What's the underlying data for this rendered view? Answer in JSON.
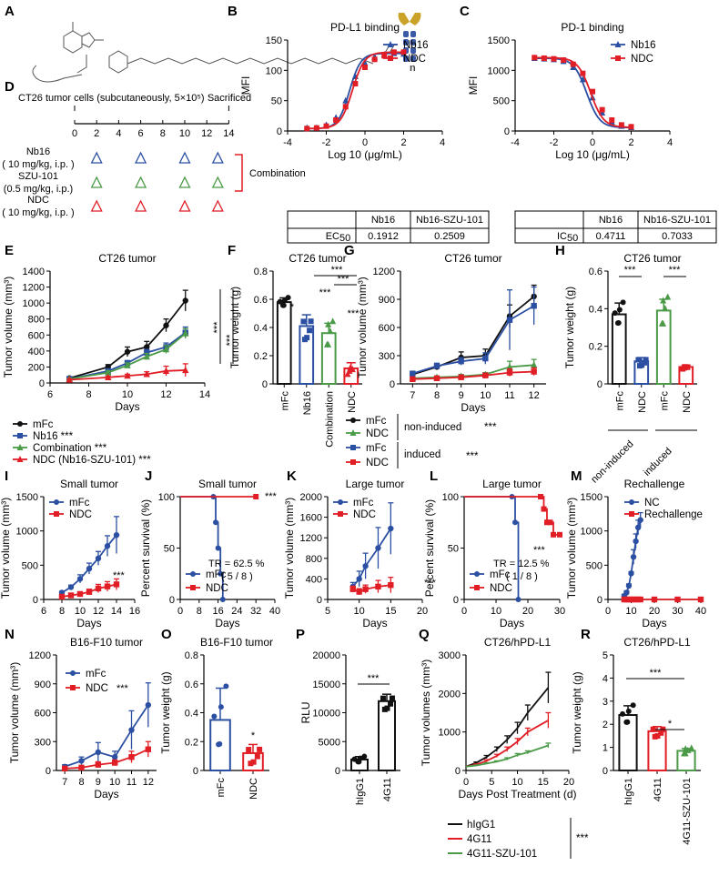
{
  "colors": {
    "black": "#111111",
    "blue": "#2b4fa2",
    "red": "#e11e26",
    "green": "#4a9a47",
    "orange": "#c9a227"
  },
  "panels": [
    "A",
    "B",
    "C",
    "D",
    "E",
    "F",
    "G",
    "H",
    "I",
    "J",
    "K",
    "L",
    "M",
    "N",
    "O",
    "P",
    "Q",
    "R"
  ],
  "stars": "***",
  "star1": "*",
  "a": {
    "n_label": "n"
  },
  "b": {
    "table": {
      "cols": [
        "Nb16",
        "Nb16-SZU-101"
      ],
      "row_label": "EC",
      "row_sub": "50",
      "values": [
        "0.1912",
        "0.2509"
      ]
    }
  },
  "c": {
    "table": {
      "cols": [
        "Nb16",
        "Nb16-SZU-101"
      ],
      "row_label": "IC",
      "row_sub": "50",
      "values": [
        "0.4711",
        "0.7033"
      ]
    }
  },
  "d": {
    "header": "CT26 tumor cells (subcutaneously, 5×10⁵)",
    "sacrificed": "Sacrificed",
    "ticks": [
      "0",
      "2",
      "4",
      "6",
      "8",
      "10",
      "12",
      "14"
    ],
    "groups": [
      {
        "name": "Nb16",
        "dose": "( 10 mg/kg, i.p. )"
      },
      {
        "name": "SZU-101",
        "dose": "(0.5 mg/kg, i.p.)"
      },
      {
        "name": "NDC",
        "dose": "( 10 mg/kg, i.p. )"
      }
    ],
    "dose_days": [
      2,
      6,
      10,
      13
    ],
    "combination": "Combination"
  },
  "e": {
    "legend": [
      "mFc",
      "Nb16 ***",
      "Combination ***",
      "NDC (Nb16-SZU-101) ***"
    ]
  },
  "g": {
    "legend_groups": [
      {
        "items": [
          "mFc",
          "NDC"
        ],
        "label": "non-induced",
        "stars": "***"
      },
      {
        "items": [
          "mFc",
          "NDC"
        ],
        "label": "induced",
        "stars": "***"
      }
    ]
  },
  "h": {
    "group_labels": [
      "non-induced",
      "induced"
    ]
  },
  "j": {
    "tr": "TR = 62.5 %",
    "tr_n": "( 5 / 8 )"
  },
  "l": {
    "tr": "TR = 12.5 %",
    "tr_n": "( 1 / 8 )"
  },
  "q": {
    "legend": [
      "hIgG1",
      "4G11",
      "4G11-SZU-101"
    ]
  },
  "chart_data": [
    {
      "id": "B",
      "type": "scatter",
      "title": "PD-L1 binding",
      "xlabel": "Log 10 (μg/mL)",
      "ylabel": "MFI",
      "xlim": [
        -4,
        4
      ],
      "ylim": [
        0,
        150
      ],
      "xticks": [
        -4,
        -2,
        0,
        2,
        4
      ],
      "yticks": [
        0,
        50,
        100,
        150
      ],
      "series": [
        {
          "name": "Nb16",
          "x": [
            -3,
            -2.5,
            -2,
            -1.5,
            -1,
            -0.5,
            0,
            0.5,
            1,
            1.5,
            2
          ],
          "y": [
            5,
            5,
            10,
            22,
            50,
            90,
            112,
            122,
            126,
            128,
            127
          ]
        },
        {
          "name": "NDC",
          "x": [
            -3,
            -2.5,
            -2,
            -1.5,
            -1,
            -0.5,
            0,
            0.5,
            1,
            1.5,
            2
          ],
          "y": [
            4,
            5,
            8,
            18,
            40,
            78,
            105,
            118,
            124,
            130,
            130
          ]
        }
      ]
    },
    {
      "id": "C",
      "type": "scatter",
      "title": "PD-1 binding",
      "xlabel": "Log 10 (μg/mL)",
      "ylabel": "MFI",
      "xlim": [
        -4,
        4
      ],
      "ylim": [
        0,
        1500
      ],
      "xticks": [
        -4,
        -2,
        0,
        2,
        4
      ],
      "yticks": [
        0,
        500,
        1000,
        1500
      ],
      "series": [
        {
          "name": "Nb16",
          "x": [
            -3,
            -2.5,
            -2,
            -1.5,
            -1,
            -0.5,
            0,
            0.5,
            1,
            1.5,
            2
          ],
          "y": [
            1200,
            1190,
            1180,
            1150,
            1050,
            850,
            550,
            300,
            150,
            80,
            60
          ]
        },
        {
          "name": "NDC",
          "x": [
            -3,
            -2.5,
            -2,
            -1.5,
            -1,
            -0.5,
            0,
            0.5,
            1,
            1.5,
            2
          ],
          "y": [
            1210,
            1200,
            1190,
            1170,
            1100,
            950,
            650,
            350,
            180,
            100,
            70
          ]
        }
      ]
    },
    {
      "id": "E",
      "type": "line",
      "title": "CT26 tumor",
      "xlabel": "Days",
      "ylabel": "Tumor volume (mm³)",
      "xlim": [
        6,
        14
      ],
      "ylim": [
        0,
        1400
      ],
      "xticks": [
        6,
        8,
        10,
        12,
        14
      ],
      "yticks": [
        0,
        200,
        400,
        600,
        800,
        1000,
        1200,
        1400
      ],
      "series": [
        {
          "name": "mFc",
          "x": [
            7,
            9,
            10,
            11,
            12,
            13
          ],
          "y": [
            60,
            200,
            390,
            450,
            720,
            1030
          ]
        },
        {
          "name": "Nb16",
          "x": [
            7,
            9,
            10,
            11,
            12,
            13
          ],
          "y": [
            50,
            150,
            250,
            380,
            450,
            630
          ]
        },
        {
          "name": "Combination",
          "x": [
            7,
            9,
            10,
            11,
            12,
            13
          ],
          "y": [
            50,
            130,
            220,
            330,
            420,
            620
          ]
        },
        {
          "name": "NDC (Nb16-SZU-101)",
          "x": [
            7,
            9,
            10,
            11,
            12,
            13
          ],
          "y": [
            40,
            70,
            90,
            110,
            150,
            160
          ]
        }
      ]
    },
    {
      "id": "F",
      "type": "bar",
      "title": "CT26 tumor",
      "ylabel": "Tumor weight (g)",
      "ylim": [
        0,
        0.8
      ],
      "yticks": [
        0,
        0.2,
        0.4,
        0.6,
        0.8
      ],
      "categories": [
        "mFc",
        "Nb16",
        "Combination",
        "NDC"
      ],
      "values": [
        0.58,
        0.41,
        0.36,
        0.11
      ],
      "errors": [
        0.03,
        0.08,
        0.07,
        0.04
      ]
    },
    {
      "id": "G",
      "type": "line",
      "title": "CT26 tumor",
      "xlabel": "Days",
      "ylabel": "Tumor volume (mm³)",
      "ylim": [
        0,
        1200
      ],
      "categories": [
        "7",
        "8",
        "9",
        "10",
        "11",
        "12"
      ],
      "yticks": [
        0,
        300,
        600,
        900,
        1200
      ],
      "series": [
        {
          "name": "mFc non-induced",
          "y": [
            100,
            180,
            280,
            300,
            720,
            930
          ]
        },
        {
          "name": "NDC non-induced",
          "y": [
            60,
            70,
            80,
            100,
            180,
            200
          ]
        },
        {
          "name": "mFc induced",
          "y": [
            110,
            190,
            240,
            270,
            680,
            830
          ]
        },
        {
          "name": "NDC induced",
          "y": [
            50,
            60,
            70,
            90,
            120,
            130
          ]
        }
      ]
    },
    {
      "id": "H",
      "type": "bar",
      "title": "CT26 tumor",
      "ylabel": "Tumor weight (g)",
      "ylim": [
        0,
        0.6
      ],
      "yticks": [
        0,
        0.2,
        0.4,
        0.6
      ],
      "categories": [
        "mFc",
        "NDC",
        "mFc",
        "NDC"
      ],
      "values": [
        0.37,
        0.12,
        0.39,
        0.09
      ],
      "errors": [
        0.06,
        0.02,
        0.06,
        0.01
      ]
    },
    {
      "id": "I",
      "type": "line",
      "title": "Small  tumor",
      "xlabel": "Days",
      "ylabel": "Tumor volume (mm³)",
      "xlim": [
        6,
        16
      ],
      "ylim": [
        0,
        1500
      ],
      "xticks": [
        6,
        8,
        10,
        12,
        14,
        16
      ],
      "yticks": [
        0,
        500,
        1000,
        1500
      ],
      "series": [
        {
          "name": "mFc",
          "x": [
            8,
            9,
            10,
            11,
            12,
            13,
            14
          ],
          "y": [
            100,
            180,
            300,
            450,
            600,
            780,
            940
          ]
        },
        {
          "name": "NDC",
          "x": [
            8,
            9,
            10,
            11,
            12,
            13,
            14
          ],
          "y": [
            40,
            60,
            80,
            110,
            160,
            190,
            220
          ]
        }
      ]
    },
    {
      "id": "J",
      "type": "line",
      "title": "Small  tumor",
      "xlabel": "Days",
      "ylabel": "Percent survival (%)",
      "xlim": [
        0,
        40
      ],
      "ylim": [
        0,
        100
      ],
      "xticks": [
        0,
        8,
        16,
        24,
        32,
        40
      ],
      "yticks": [
        0,
        50,
        100
      ],
      "series": [
        {
          "name": "mFc",
          "x": [
            0,
            14,
            15,
            16,
            17,
            18
          ],
          "y": [
            100,
            100,
            75,
            50,
            25,
            0
          ]
        },
        {
          "name": "NDC",
          "x": [
            0,
            32
          ],
          "y": [
            100,
            100
          ]
        }
      ]
    },
    {
      "id": "K",
      "type": "line",
      "title": "Large  tumor",
      "xlabel": "Days",
      "ylabel": "Tumor volume (mm³)",
      "xlim": [
        5,
        20
      ],
      "ylim": [
        0,
        2000
      ],
      "xticks": [
        5,
        10,
        15,
        20
      ],
      "yticks": [
        0,
        400,
        800,
        1200,
        1600,
        2000
      ],
      "series": [
        {
          "name": "mFc",
          "x": [
            9,
            10,
            11,
            13,
            15
          ],
          "y": [
            250,
            400,
            650,
            1000,
            1380
          ]
        },
        {
          "name": "NDC",
          "x": [
            9,
            10,
            11,
            13,
            15
          ],
          "y": [
            200,
            150,
            200,
            250,
            280
          ]
        }
      ]
    },
    {
      "id": "L",
      "type": "line",
      "title": "Large  tumor",
      "xlabel": "Days",
      "ylabel": "Percent survival (%)",
      "xlim": [
        0,
        30
      ],
      "ylim": [
        0,
        100
      ],
      "xticks": [
        0,
        10,
        20,
        30
      ],
      "yticks": [
        0,
        50,
        100
      ],
      "series": [
        {
          "name": "mFc",
          "x": [
            0,
            15,
            16,
            17
          ],
          "y": [
            100,
            100,
            75,
            0
          ]
        },
        {
          "name": "NDC",
          "x": [
            0,
            24,
            25,
            26,
            27,
            28,
            30
          ],
          "y": [
            100,
            100,
            88,
            75,
            75,
            63,
            63
          ]
        }
      ]
    },
    {
      "id": "M",
      "type": "line",
      "title": "Rechallenge",
      "xlabel": "Days",
      "ylabel": "Tumor volume (mm³)",
      "xlim": [
        0,
        40
      ],
      "ylim": [
        0,
        1500
      ],
      "xticks": [
        0,
        10,
        20,
        30,
        40
      ],
      "yticks": [
        0,
        500,
        1000,
        1500
      ],
      "series": [
        {
          "name": "NC",
          "x": [
            7,
            8,
            9,
            10,
            11,
            12,
            13,
            14
          ],
          "y": [
            50,
            100,
            200,
            380,
            620,
            850,
            1050,
            1160
          ]
        },
        {
          "name": "Rechallenge",
          "x": [
            7,
            8,
            9,
            10,
            11,
            12,
            13,
            14,
            20,
            30,
            40
          ],
          "y": [
            0,
            0,
            0,
            0,
            0,
            0,
            0,
            0,
            0,
            0,
            0
          ]
        }
      ]
    },
    {
      "id": "N",
      "type": "line",
      "title": "B16-F10 tumor",
      "xlabel": "Days",
      "ylabel": "Tumor volume (mm³)",
      "ylim": [
        0,
        1200
      ],
      "categories": [
        "7",
        "8",
        "9",
        "10",
        "11",
        "12"
      ],
      "yticks": [
        0,
        300,
        600,
        900,
        1200
      ],
      "series": [
        {
          "name": "mFc",
          "y": [
            40,
            100,
            190,
            140,
            420,
            680
          ]
        },
        {
          "name": "NDC",
          "y": [
            20,
            30,
            60,
            80,
            140,
            220
          ]
        }
      ]
    },
    {
      "id": "O",
      "type": "bar",
      "title": "B16-F10 tumor",
      "ylabel": "Tumor weight (g)",
      "ylim": [
        0,
        0.8
      ],
      "yticks": [
        0,
        0.2,
        0.4,
        0.6,
        0.8
      ],
      "categories": [
        "mFc",
        "NDC"
      ],
      "values": [
        0.35,
        0.12
      ],
      "errors": [
        0.22,
        0.06
      ]
    },
    {
      "id": "P",
      "type": "bar",
      "ylabel": "RLU",
      "ylim": [
        0,
        20000
      ],
      "yticks": [
        0,
        5000,
        10000,
        15000,
        20000
      ],
      "categories": [
        "hIgG1",
        "4G11"
      ],
      "values": [
        1900,
        12000
      ],
      "errors": [
        500,
        1200
      ]
    },
    {
      "id": "Q",
      "type": "line",
      "title": "CT26/hPD-L1",
      "xlabel": "Days Post Treatment (d)",
      "ylabel": "Tumor volumes (mm³)",
      "xlim": [
        0,
        20
      ],
      "ylim": [
        0,
        3000
      ],
      "xticks": [
        0,
        5,
        10,
        15,
        20
      ],
      "yticks": [
        0,
        1000,
        2000,
        3000
      ],
      "series": [
        {
          "name": "hIgG1",
          "x": [
            0,
            2,
            4,
            6,
            8,
            10,
            12,
            16
          ],
          "y": [
            100,
            200,
            350,
            550,
            800,
            1100,
            1500,
            2150
          ]
        },
        {
          "name": "4G11",
          "x": [
            0,
            2,
            4,
            6,
            8,
            10,
            12,
            16
          ],
          "y": [
            100,
            150,
            250,
            380,
            550,
            750,
            1000,
            1300
          ]
        },
        {
          "name": "4G11-SZU-101",
          "x": [
            0,
            2,
            4,
            6,
            8,
            10,
            12,
            16
          ],
          "y": [
            100,
            130,
            180,
            230,
            300,
            400,
            470,
            650
          ]
        }
      ]
    },
    {
      "id": "R",
      "type": "bar",
      "title": "CT26/hPD-L1",
      "ylabel": "Tumor weight (g)",
      "ylim": [
        0,
        5
      ],
      "yticks": [
        0,
        1,
        2,
        3,
        4,
        5
      ],
      "categories": [
        "hIgG1",
        "4G11",
        "4G11-SZU-101"
      ],
      "values": [
        2.4,
        1.7,
        0.85
      ],
      "errors": [
        0.4,
        0.2,
        0.1
      ]
    }
  ]
}
